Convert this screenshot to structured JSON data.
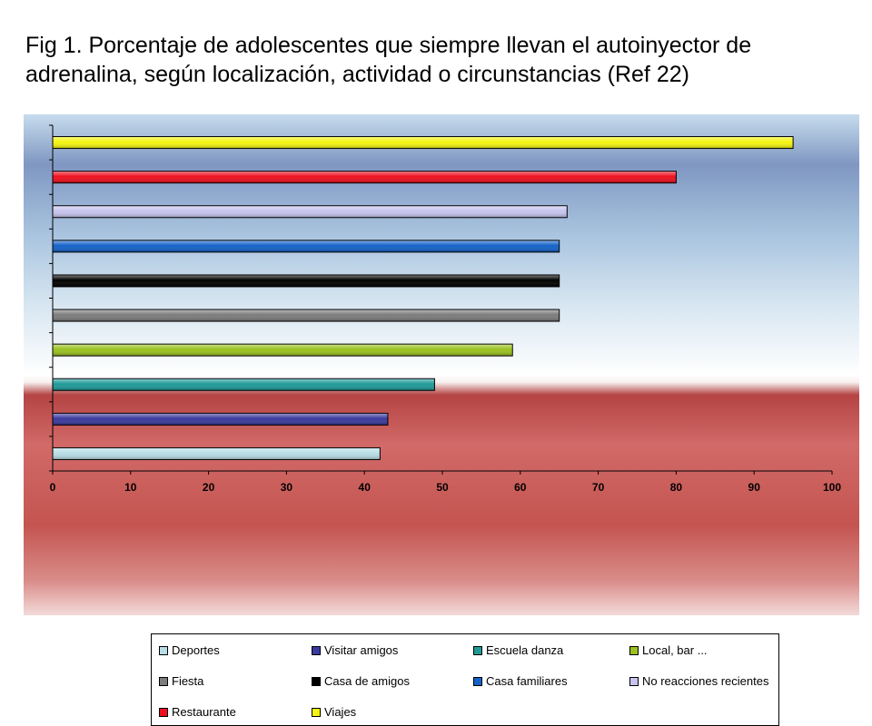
{
  "title": "Fig 1. Porcentaje de adolescentes que siempre llevan el autoinyector de adrenalina, según  localización, actividad o circunstancias  (Ref 22)",
  "chart_data": {
    "type": "bar",
    "orientation": "horizontal",
    "title": "Fig 1. Porcentaje de adolescentes que siempre llevan el autoinyector de adrenalina, según  localización, actividad o circunstancias  (Ref 22)",
    "xlabel": "",
    "ylabel": "",
    "xlim": [
      0,
      100
    ],
    "x_ticks": [
      "0",
      "10",
      "20",
      "30",
      "40",
      "50",
      "60",
      "70",
      "80",
      "90",
      "100"
    ],
    "grid": false,
    "legend_position": "bottom",
    "series": [
      {
        "name": "Deportes",
        "value": 42,
        "color": "#b8dde6"
      },
      {
        "name": "Visitar amigos",
        "value": 43,
        "color": "#3a3a9e"
      },
      {
        "name": "Escuela danza",
        "value": 49,
        "color": "#1f9a98"
      },
      {
        "name": "Local, bar ...",
        "value": 59,
        "color": "#9bc21f"
      },
      {
        "name": "Fiesta",
        "value": 65,
        "color": "#7c7c7c"
      },
      {
        "name": "Casa de amigos",
        "value": 65,
        "color": "#000000"
      },
      {
        "name": "Casa familiares",
        "value": 65,
        "color": "#1462c8"
      },
      {
        "name": "No reacciones recientes",
        "value": 66,
        "color": "#c7c4ee"
      },
      {
        "name": "Restaurante",
        "value": 80,
        "color": "#ee0f1e"
      },
      {
        "name": "Viajes",
        "value": 95,
        "color": "#f4f410"
      }
    ]
  }
}
